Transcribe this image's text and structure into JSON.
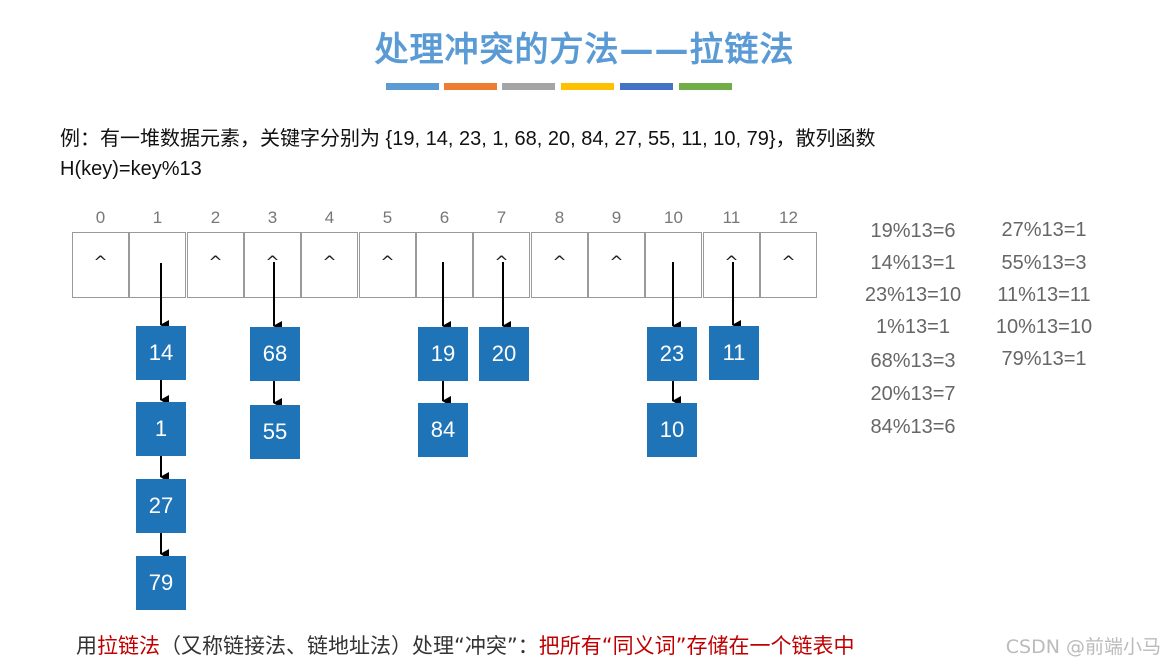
{
  "title": "处理冲突的方法——拉链法",
  "title_color": "#5b9bd5",
  "color_bar": [
    "#5b9bd5",
    "#ed7d31",
    "#a5a5a5",
    "#ffc000",
    "#4472c4",
    "#70ad47"
  ],
  "example": {
    "line1": "例：有一堆数据元素，关键字分别为 {19, 14, 23, 1, 68, 20, 84, 27, 55, 11, 10, 79}，散列函数",
    "line2": "H(key)=key%13"
  },
  "table": {
    "indices": [
      "0",
      "1",
      "2",
      "3",
      "4",
      "5",
      "6",
      "7",
      "8",
      "9",
      "10",
      "11",
      "12"
    ],
    "null_marker": "^"
  },
  "chains": {
    "c1": [
      "14",
      "1",
      "27",
      "79"
    ],
    "c3": [
      "68",
      "55"
    ],
    "c6": [
      "19",
      "84"
    ],
    "c7": [
      "20"
    ],
    "c10": [
      "23",
      "10"
    ],
    "c11": [
      "11"
    ]
  },
  "calcs_col1": [
    "19%13=6",
    "14%13=1",
    "23%13=10",
    "1%13=1",
    "68%13=3",
    "20%13=7",
    "84%13=6"
  ],
  "calcs_col2": [
    "27%13=1",
    "55%13=3",
    "11%13=11",
    "10%13=10",
    "79%13=1"
  ],
  "footer": {
    "p1": "用",
    "p2": "拉链法",
    "p3": "（又称链接法、链地址法）处理“冲突”：",
    "p4": "把所有“同义词”存储在一个链表中"
  },
  "watermark": "CSDN @前端小马",
  "node_color": "#1f73b7",
  "highlight_color": "#c00000"
}
